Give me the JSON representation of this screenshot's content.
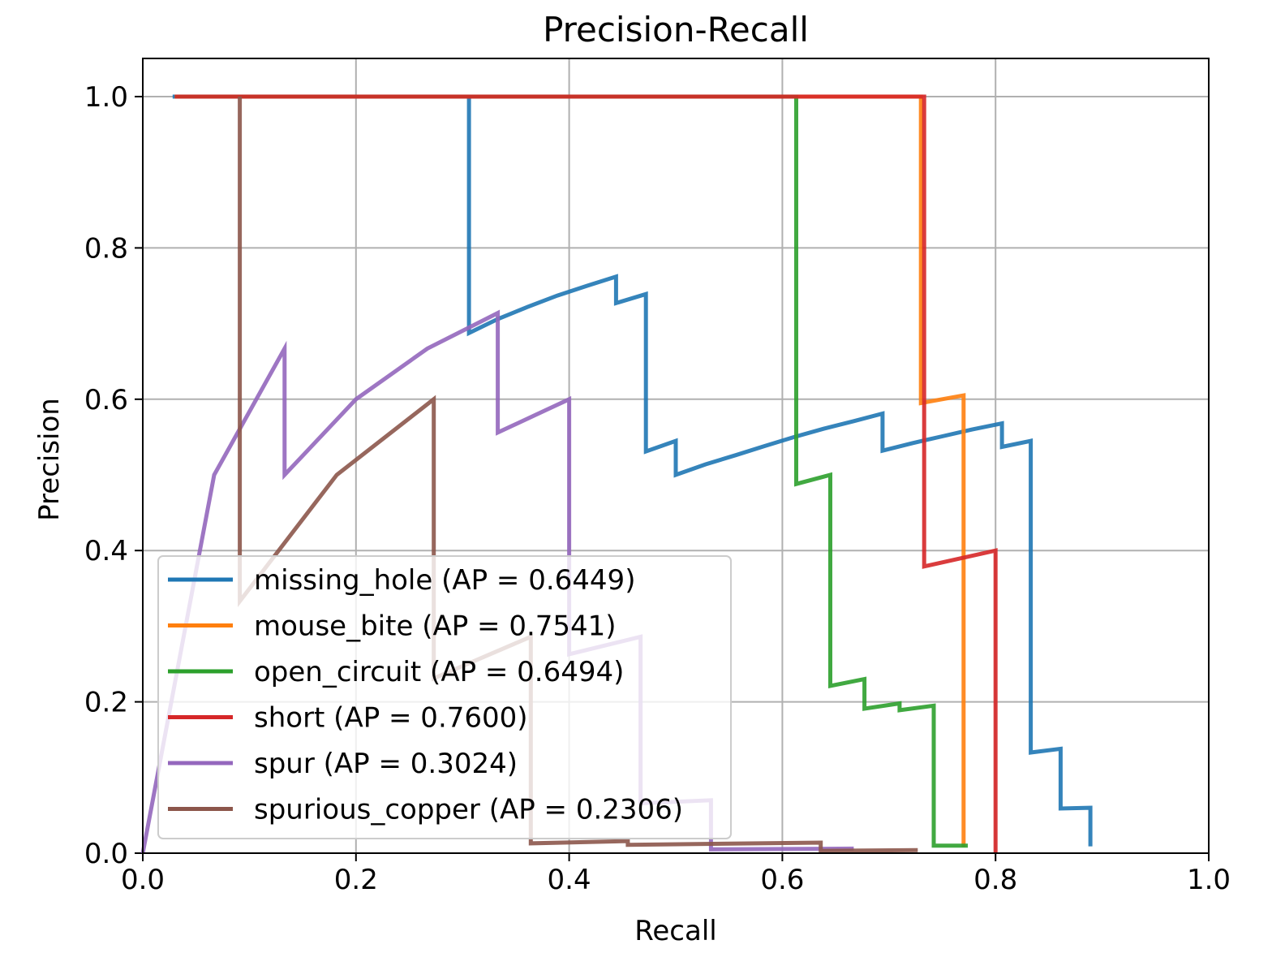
{
  "chart_data": {
    "type": "line",
    "title": "Precision-Recall",
    "xlabel": "Recall",
    "ylabel": "Precision",
    "xlim": [
      0,
      1
    ],
    "ylim": [
      0,
      1
    ],
    "grid": true,
    "legend_position": "lower-left",
    "x_ticks": [
      "0.0",
      "0.2",
      "0.4",
      "0.6",
      "0.8",
      "1.0"
    ],
    "y_ticks": [
      "0.0",
      "0.2",
      "0.4",
      "0.6",
      "0.8",
      "1.0"
    ],
    "series": [
      {
        "name": "missing_hole (AP = 0.6449)",
        "color": "#1f77b4",
        "points": [
          [
            0.028,
            1.0
          ],
          [
            0.306,
            1.0
          ],
          [
            0.306,
            0.6875
          ],
          [
            0.333,
            0.706
          ],
          [
            0.361,
            0.722
          ],
          [
            0.389,
            0.737
          ],
          [
            0.417,
            0.75
          ],
          [
            0.444,
            0.762
          ],
          [
            0.444,
            0.727
          ],
          [
            0.472,
            0.739
          ],
          [
            0.472,
            0.531
          ],
          [
            0.5,
            0.545
          ],
          [
            0.5,
            0.5
          ],
          [
            0.528,
            0.514
          ],
          [
            0.556,
            0.526
          ],
          [
            0.583,
            0.538
          ],
          [
            0.611,
            0.55
          ],
          [
            0.639,
            0.561
          ],
          [
            0.667,
            0.571
          ],
          [
            0.694,
            0.581
          ],
          [
            0.694,
            0.532
          ],
          [
            0.722,
            0.542
          ],
          [
            0.75,
            0.551
          ],
          [
            0.778,
            0.56
          ],
          [
            0.806,
            0.568
          ],
          [
            0.806,
            0.537
          ],
          [
            0.833,
            0.545
          ],
          [
            0.833,
            0.133
          ],
          [
            0.861,
            0.138
          ],
          [
            0.861,
            0.059
          ],
          [
            0.889,
            0.06
          ],
          [
            0.889,
            0.009
          ]
        ]
      },
      {
        "name": "mouse_bite (AP = 0.7541)",
        "color": "#ff7f0e",
        "points": [
          [
            0.03,
            1.0
          ],
          [
            0.73,
            1.0
          ],
          [
            0.73,
            0.595
          ],
          [
            0.77,
            0.605
          ],
          [
            0.77,
            0.01
          ],
          [
            0.77,
            0.008
          ]
        ]
      },
      {
        "name": "open_circuit (AP = 0.6494)",
        "color": "#2ca02c",
        "points": [
          [
            0.03,
            1.0
          ],
          [
            0.613,
            1.0
          ],
          [
            0.613,
            0.488
          ],
          [
            0.645,
            0.5
          ],
          [
            0.645,
            0.221
          ],
          [
            0.677,
            0.23
          ],
          [
            0.677,
            0.191
          ],
          [
            0.71,
            0.198
          ],
          [
            0.71,
            0.189
          ],
          [
            0.742,
            0.195
          ],
          [
            0.742,
            0.01
          ],
          [
            0.774,
            0.01
          ]
        ]
      },
      {
        "name": "short (AP = 0.7600)",
        "color": "#d62728",
        "points": [
          [
            0.03,
            1.0
          ],
          [
            0.733,
            1.0
          ],
          [
            0.733,
            0.379
          ],
          [
            0.8,
            0.4
          ],
          [
            0.8,
            0.0
          ]
        ]
      },
      {
        "name": "spur (AP = 0.3024)",
        "color": "#9467bd",
        "points": [
          [
            0.0,
            0.0
          ],
          [
            0.067,
            0.5
          ],
          [
            0.133,
            0.667
          ],
          [
            0.133,
            0.5
          ],
          [
            0.2,
            0.6
          ],
          [
            0.267,
            0.667
          ],
          [
            0.333,
            0.714
          ],
          [
            0.333,
            0.556
          ],
          [
            0.4,
            0.6
          ],
          [
            0.4,
            0.263
          ],
          [
            0.467,
            0.286
          ],
          [
            0.467,
            0.066
          ],
          [
            0.533,
            0.07
          ],
          [
            0.533,
            0.005
          ],
          [
            0.667,
            0.006
          ]
        ]
      },
      {
        "name": "spurious_copper (AP = 0.2306)",
        "color": "#8c564b",
        "points": [
          [
            0.091,
            1.0
          ],
          [
            0.091,
            0.333
          ],
          [
            0.182,
            0.5
          ],
          [
            0.273,
            0.6
          ],
          [
            0.273,
            0.231
          ],
          [
            0.364,
            0.286
          ],
          [
            0.364,
            0.013
          ],
          [
            0.455,
            0.016
          ],
          [
            0.455,
            0.011
          ],
          [
            0.636,
            0.014
          ],
          [
            0.636,
            0.003
          ],
          [
            0.727,
            0.004
          ]
        ]
      }
    ]
  }
}
